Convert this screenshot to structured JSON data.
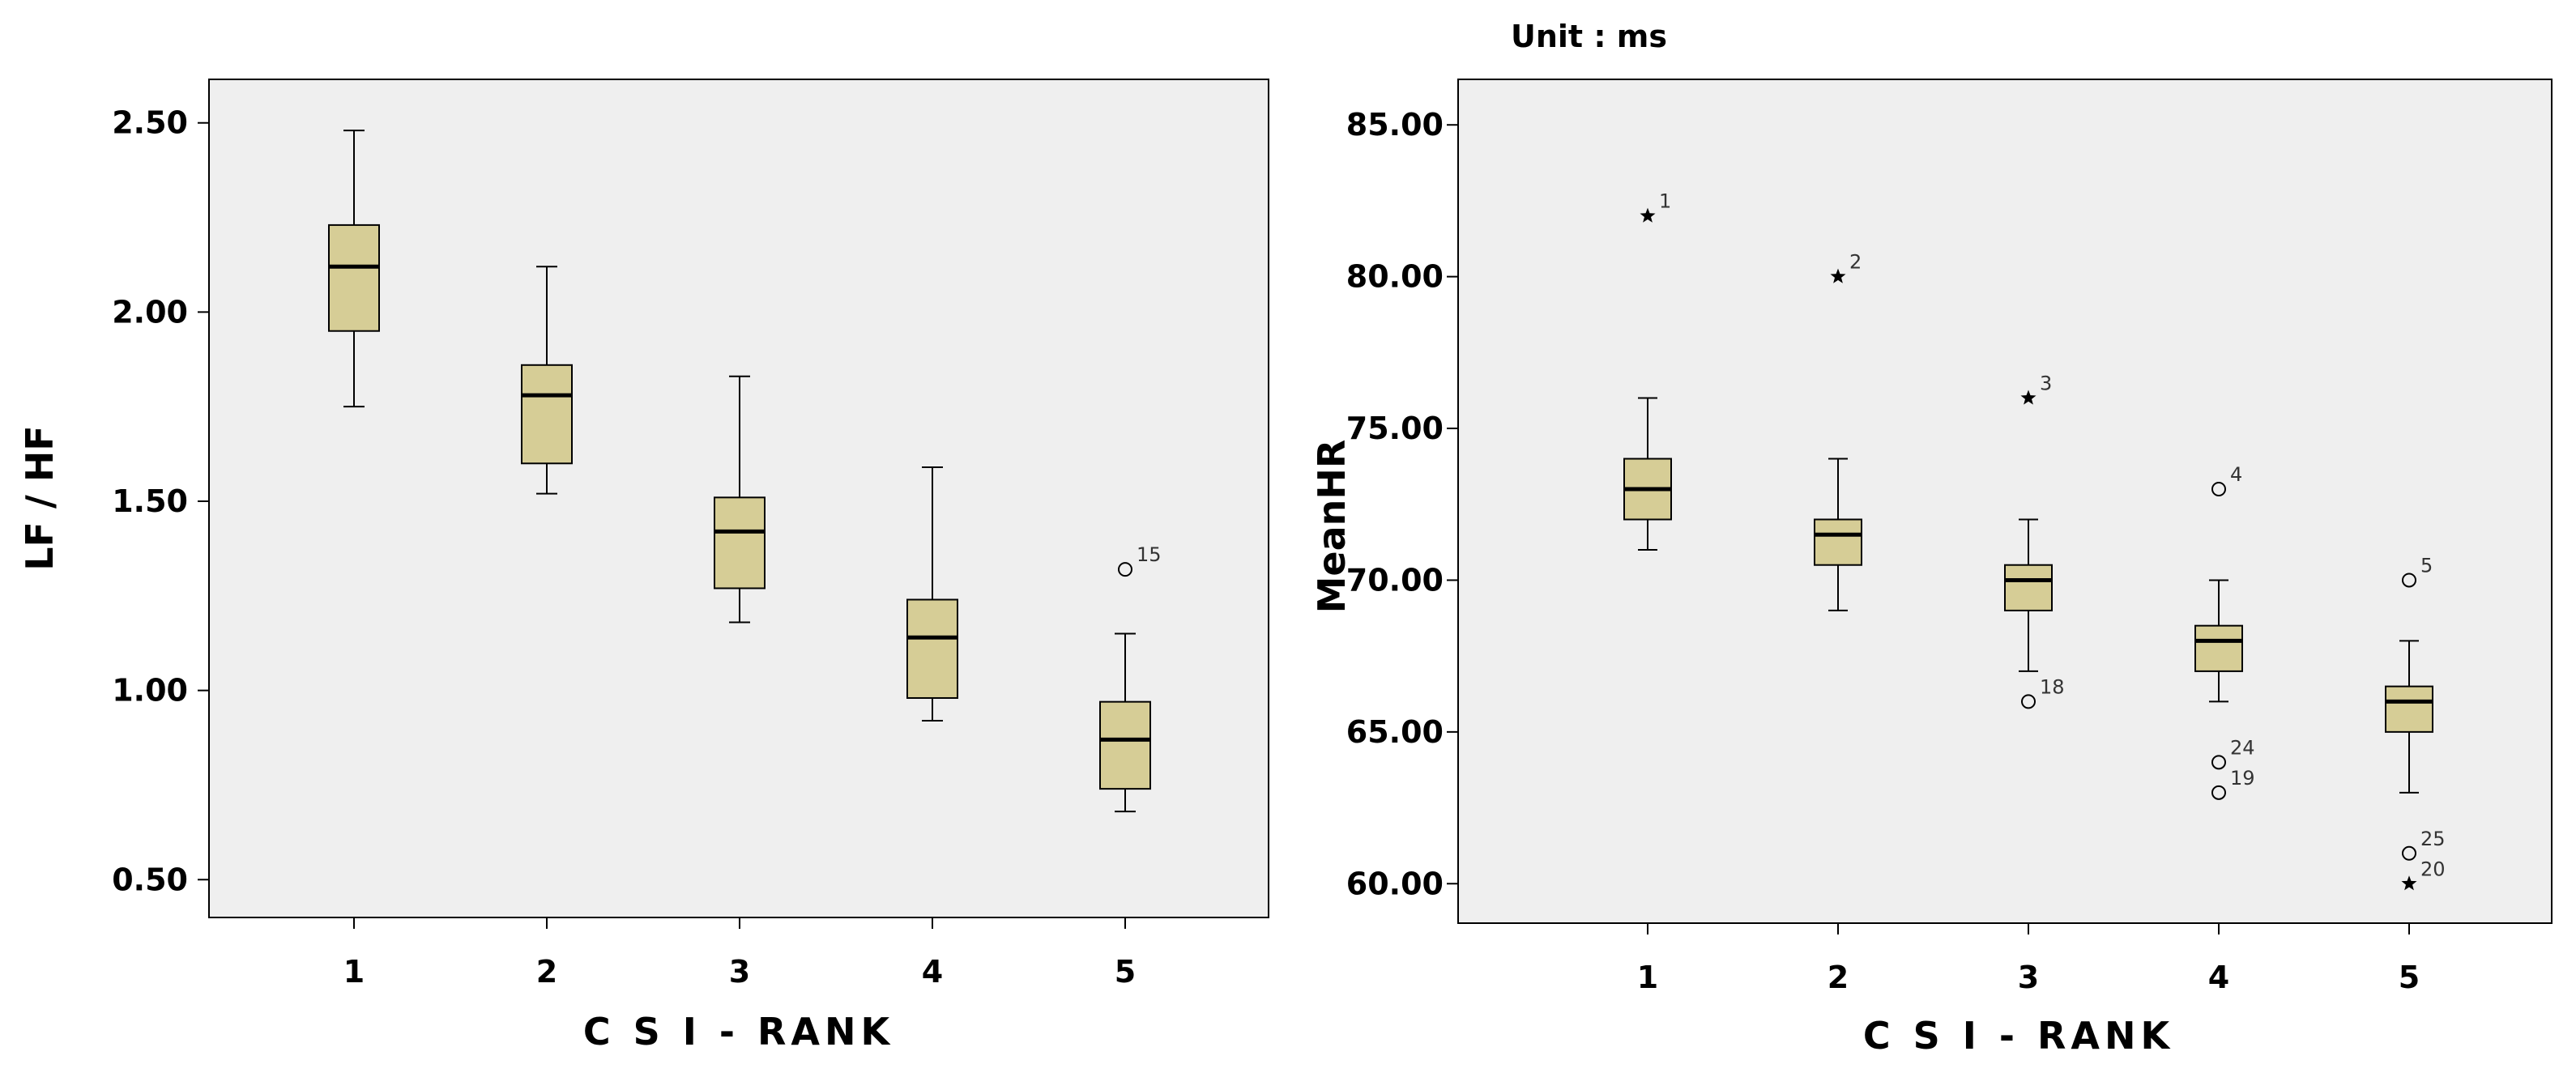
{
  "chart_data": [
    {
      "type": "boxplot",
      "title": "",
      "xlabel": "C S I - RANK",
      "ylabel": "LF / HF",
      "ylim": [
        0.4,
        2.615
      ],
      "yticks": [
        "0.50",
        "1.00",
        "1.50",
        "2.00",
        "2.50"
      ],
      "categories": [
        "1",
        "2",
        "3",
        "4",
        "5"
      ],
      "box_color": "#d6cd96",
      "background": "#efefef",
      "boxes": [
        {
          "category": "1",
          "min": 1.75,
          "q1": 1.95,
          "median": 2.12,
          "q3": 2.23,
          "max": 2.48
        },
        {
          "category": "2",
          "min": 1.52,
          "q1": 1.6,
          "median": 1.78,
          "q3": 1.86,
          "max": 2.12
        },
        {
          "category": "3",
          "min": 1.18,
          "q1": 1.27,
          "median": 1.42,
          "q3": 1.51,
          "max": 1.83
        },
        {
          "category": "4",
          "min": 0.92,
          "q1": 0.98,
          "median": 1.14,
          "q3": 1.24,
          "max": 1.59
        },
        {
          "category": "5",
          "min": 0.68,
          "q1": 0.74,
          "median": 0.87,
          "q3": 0.97,
          "max": 1.15
        }
      ],
      "outliers": [
        {
          "category": "5",
          "value": 1.32,
          "marker": "circle",
          "label": "15"
        }
      ]
    },
    {
      "type": "boxplot",
      "title": "",
      "annotation": "Unit : ms",
      "xlabel": "C S I - RANK",
      "ylabel": "MeanHR",
      "ylim": [
        58.7,
        86.5
      ],
      "yticks": [
        "60.00",
        "65.00",
        "70.00",
        "75.00",
        "80.00",
        "85.00"
      ],
      "categories": [
        "1",
        "2",
        "3",
        "4",
        "5"
      ],
      "box_color": "#d6cd96",
      "background": "#efefef",
      "boxes": [
        {
          "category": "1",
          "min": 71,
          "q1": 72,
          "median": 73,
          "q3": 74,
          "max": 76
        },
        {
          "category": "2",
          "min": 69,
          "q1": 70.5,
          "median": 71.5,
          "q3": 72,
          "max": 74
        },
        {
          "category": "3",
          "min": 67,
          "q1": 69,
          "median": 70,
          "q3": 70.5,
          "max": 72
        },
        {
          "category": "4",
          "min": 66,
          "q1": 67,
          "median": 68,
          "q3": 68.5,
          "max": 70
        },
        {
          "category": "5",
          "min": 63,
          "q1": 65,
          "median": 66,
          "q3": 66.5,
          "max": 68
        }
      ],
      "outliers": [
        {
          "category": "1",
          "value": 82,
          "marker": "star",
          "label": "1"
        },
        {
          "category": "2",
          "value": 80,
          "marker": "star",
          "label": "2"
        },
        {
          "category": "3",
          "value": 76,
          "marker": "star",
          "label": "3"
        },
        {
          "category": "3",
          "value": 66,
          "marker": "circle",
          "label": "18"
        },
        {
          "category": "4",
          "value": 73,
          "marker": "circle",
          "label": "4"
        },
        {
          "category": "4",
          "value": 64,
          "marker": "circle",
          "label": "24"
        },
        {
          "category": "4",
          "value": 63,
          "marker": "circle",
          "label": "19"
        },
        {
          "category": "5",
          "value": 70,
          "marker": "circle",
          "label": "5"
        },
        {
          "category": "5",
          "value": 61,
          "marker": "circle",
          "label": "25"
        },
        {
          "category": "5",
          "value": 60,
          "marker": "star",
          "label": "20"
        }
      ]
    }
  ]
}
